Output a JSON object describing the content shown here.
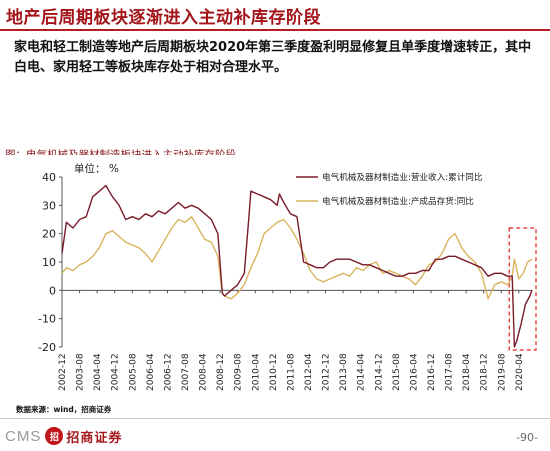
{
  "slide": {
    "title": "地产后周期板块逐渐进入主动补库存阶段",
    "body": "家电和轻工制造等地产后周期板块2020年第三季度盈利明显修复且单季度增速转正，其中白电、家用轻工等板块库存处于相对合理水平。",
    "source": "数据来源：wind，招商证券",
    "page": "-90-",
    "logo_text": "CMS",
    "logo_badge": "招",
    "logo_cn": "招商证券"
  },
  "colors": {
    "title": "#a3141a",
    "revenue_line": "#7a1b2a",
    "inventory_line": "#d9b45e",
    "highlight_box": "#e0201c"
  },
  "chart_data": {
    "type": "line",
    "title": "图：电气机械及器材制造板块进入主动补库存阶段",
    "unit_label": "单位：  %",
    "ylim": [
      -20,
      40
    ],
    "yticks": [
      -20,
      -10,
      0,
      10,
      20,
      30,
      40
    ],
    "xlabels": [
      "2002-12",
      "2003-08",
      "2004-04",
      "2004-12",
      "2005-08",
      "2006-04",
      "2006-12",
      "2007-08",
      "2008-04",
      "2008-12",
      "2009-08",
      "2010-04",
      "2010-12",
      "2011-08",
      "2012-04",
      "2012-12",
      "2013-08",
      "2014-04",
      "2014-12",
      "2015-08",
      "2016-04",
      "2016-12",
      "2017-08",
      "2018-04",
      "2018-12",
      "2019-08",
      "2020-04"
    ],
    "x_range": [
      "2002-12",
      "2020-10"
    ],
    "legend_position": "top-right",
    "highlight_region": [
      "2020-01",
      "2020-10"
    ],
    "series": [
      {
        "name": "电气机械及器材制造业:营业收入:累计同比",
        "color": "#7a1b2a",
        "points": [
          [
            "2002-12",
            13
          ],
          [
            "2003-02",
            24
          ],
          [
            "2003-05",
            22
          ],
          [
            "2003-08",
            25
          ],
          [
            "2003-11",
            26
          ],
          [
            "2004-02",
            33
          ],
          [
            "2004-05",
            35
          ],
          [
            "2004-08",
            37
          ],
          [
            "2004-11",
            33
          ],
          [
            "2005-02",
            30
          ],
          [
            "2005-05",
            25
          ],
          [
            "2005-08",
            26
          ],
          [
            "2005-11",
            25
          ],
          [
            "2006-02",
            27
          ],
          [
            "2006-05",
            26
          ],
          [
            "2006-08",
            28
          ],
          [
            "2006-11",
            27
          ],
          [
            "2007-02",
            29
          ],
          [
            "2007-05",
            31
          ],
          [
            "2007-08",
            29
          ],
          [
            "2007-11",
            30
          ],
          [
            "2008-02",
            29
          ],
          [
            "2008-05",
            27
          ],
          [
            "2008-08",
            25
          ],
          [
            "2008-11",
            20
          ],
          [
            "2009-01",
            -1
          ],
          [
            "2009-02",
            -2
          ],
          [
            "2009-05",
            0
          ],
          [
            "2009-08",
            2
          ],
          [
            "2009-11",
            6
          ],
          [
            "2010-01",
            25
          ],
          [
            "2010-02",
            35
          ],
          [
            "2010-05",
            34
          ],
          [
            "2010-08",
            33
          ],
          [
            "2010-11",
            32
          ],
          [
            "2011-02",
            30
          ],
          [
            "2011-03",
            34
          ],
          [
            "2011-05",
            31
          ],
          [
            "2011-08",
            27
          ],
          [
            "2011-11",
            26
          ],
          [
            "2012-02",
            10
          ],
          [
            "2012-05",
            9
          ],
          [
            "2012-08",
            8
          ],
          [
            "2012-11",
            8
          ],
          [
            "2013-02",
            10
          ],
          [
            "2013-05",
            11
          ],
          [
            "2013-08",
            11
          ],
          [
            "2013-11",
            11
          ],
          [
            "2014-02",
            10
          ],
          [
            "2014-05",
            9
          ],
          [
            "2014-08",
            9
          ],
          [
            "2014-11",
            8
          ],
          [
            "2015-02",
            7
          ],
          [
            "2015-05",
            6
          ],
          [
            "2015-08",
            5
          ],
          [
            "2015-11",
            5
          ],
          [
            "2016-02",
            6
          ],
          [
            "2016-05",
            6
          ],
          [
            "2016-08",
            7
          ],
          [
            "2016-11",
            7
          ],
          [
            "2017-02",
            11
          ],
          [
            "2017-05",
            11
          ],
          [
            "2017-08",
            12
          ],
          [
            "2017-11",
            12
          ],
          [
            "2018-02",
            11
          ],
          [
            "2018-05",
            10
          ],
          [
            "2018-08",
            9
          ],
          [
            "2018-11",
            8
          ],
          [
            "2019-02",
            5
          ],
          [
            "2019-05",
            6
          ],
          [
            "2019-08",
            6
          ],
          [
            "2019-11",
            5
          ],
          [
            "2020-01",
            5
          ],
          [
            "2020-02",
            -20
          ],
          [
            "2020-03",
            -18
          ],
          [
            "2020-05",
            -12
          ],
          [
            "2020-07",
            -5
          ],
          [
            "2020-09",
            -2
          ],
          [
            "2020-10",
            0
          ]
        ]
      },
      {
        "name": "电气机械及器材制造业:产成品存货:同比",
        "color": "#d9b45e",
        "points": [
          [
            "2002-12",
            6
          ],
          [
            "2003-02",
            8
          ],
          [
            "2003-05",
            7
          ],
          [
            "2003-08",
            9
          ],
          [
            "2003-11",
            10
          ],
          [
            "2004-02",
            12
          ],
          [
            "2004-05",
            15
          ],
          [
            "2004-08",
            20
          ],
          [
            "2004-11",
            21
          ],
          [
            "2005-02",
            19
          ],
          [
            "2005-05",
            17
          ],
          [
            "2005-08",
            16
          ],
          [
            "2005-11",
            15
          ],
          [
            "2006-02",
            13
          ],
          [
            "2006-05",
            10
          ],
          [
            "2006-08",
            14
          ],
          [
            "2006-11",
            18
          ],
          [
            "2007-02",
            22
          ],
          [
            "2007-05",
            25
          ],
          [
            "2007-08",
            24
          ],
          [
            "2007-11",
            26
          ],
          [
            "2008-02",
            22
          ],
          [
            "2008-05",
            18
          ],
          [
            "2008-08",
            17
          ],
          [
            "2008-11",
            12
          ],
          [
            "2009-01",
            -1
          ],
          [
            "2009-02",
            -2
          ],
          [
            "2009-05",
            -3
          ],
          [
            "2009-08",
            -1
          ],
          [
            "2009-11",
            2
          ],
          [
            "2010-02",
            8
          ],
          [
            "2010-05",
            13
          ],
          [
            "2010-08",
            20
          ],
          [
            "2010-11",
            22
          ],
          [
            "2011-02",
            24
          ],
          [
            "2011-05",
            25
          ],
          [
            "2011-08",
            22
          ],
          [
            "2011-11",
            18
          ],
          [
            "2012-02",
            13
          ],
          [
            "2012-05",
            7
          ],
          [
            "2012-08",
            4
          ],
          [
            "2012-11",
            3
          ],
          [
            "2013-02",
            4
          ],
          [
            "2013-05",
            5
          ],
          [
            "2013-08",
            6
          ],
          [
            "2013-11",
            5
          ],
          [
            "2014-02",
            8
          ],
          [
            "2014-05",
            7
          ],
          [
            "2014-08",
            9
          ],
          [
            "2014-11",
            10
          ],
          [
            "2015-02",
            6
          ],
          [
            "2015-05",
            7
          ],
          [
            "2015-08",
            6
          ],
          [
            "2015-11",
            5
          ],
          [
            "2016-02",
            4
          ],
          [
            "2016-05",
            2
          ],
          [
            "2016-08",
            5
          ],
          [
            "2016-11",
            9
          ],
          [
            "2017-02",
            10
          ],
          [
            "2017-05",
            13
          ],
          [
            "2017-08",
            18
          ],
          [
            "2017-11",
            20
          ],
          [
            "2018-02",
            15
          ],
          [
            "2018-05",
            12
          ],
          [
            "2018-08",
            10
          ],
          [
            "2018-11",
            6
          ],
          [
            "2019-02",
            -3
          ],
          [
            "2019-05",
            2
          ],
          [
            "2019-08",
            3
          ],
          [
            "2019-11",
            2
          ],
          [
            "2020-01",
            5
          ],
          [
            "2020-02",
            11
          ],
          [
            "2020-04",
            4
          ],
          [
            "2020-06",
            6
          ],
          [
            "2020-08",
            10
          ],
          [
            "2020-10",
            11
          ]
        ]
      }
    ]
  }
}
